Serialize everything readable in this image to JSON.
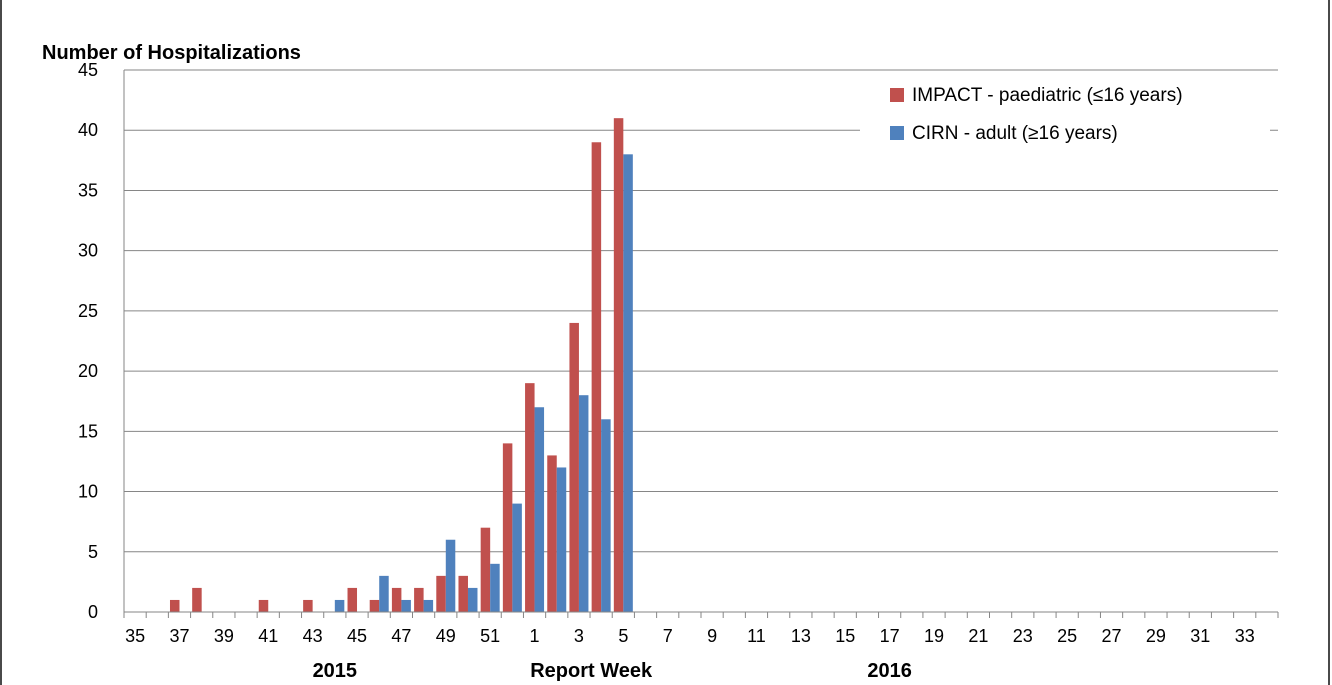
{
  "chart_data": {
    "type": "bar",
    "ylabel": "Number of Hospitalizations",
    "xlabel": "Report Week",
    "ylim": [
      0,
      45
    ],
    "y_ticks": [
      0,
      5,
      10,
      15,
      20,
      25,
      30,
      35,
      40,
      45
    ],
    "grid": "horizontal",
    "legend_placement": "top-right",
    "year_labels": [
      {
        "label": "2015",
        "at_week_index": 9
      },
      {
        "label": "2016",
        "at_week_index": 34
      }
    ],
    "categories": [
      "35",
      "36",
      "37",
      "38",
      "39",
      "40",
      "41",
      "42",
      "43",
      "44",
      "45",
      "46",
      "47",
      "48",
      "49",
      "50",
      "51",
      "52",
      "1",
      "2",
      "3",
      "4",
      "5",
      "6",
      "7",
      "8",
      "9",
      "10",
      "11",
      "12",
      "13",
      "14",
      "15",
      "16",
      "17",
      "18",
      "19",
      "20",
      "21",
      "22",
      "23",
      "24",
      "25",
      "26",
      "27",
      "28",
      "29",
      "30",
      "31",
      "32",
      "33",
      "34"
    ],
    "x_tick_labels": [
      "35",
      "37",
      "39",
      "41",
      "43",
      "45",
      "47",
      "49",
      "51",
      "1",
      "3",
      "5",
      "7",
      "9",
      "11",
      "13",
      "15",
      "17",
      "19",
      "21",
      "23",
      "25",
      "27",
      "29",
      "31",
      "33"
    ],
    "series": [
      {
        "name": "IMPACT - paediatric (≤16 years)",
        "color": "#c0504d",
        "values": [
          0,
          0,
          1,
          2,
          0,
          0,
          1,
          0,
          1,
          0,
          2,
          1,
          2,
          2,
          3,
          3,
          7,
          14,
          19,
          13,
          24,
          39,
          41,
          0,
          0,
          0,
          0,
          0,
          0,
          0,
          0,
          0,
          0,
          0,
          0,
          0,
          0,
          0,
          0,
          0,
          0,
          0,
          0,
          0,
          0,
          0,
          0,
          0,
          0,
          0,
          0,
          0
        ]
      },
      {
        "name": "CIRN - adult (≥16 years)",
        "color": "#4f81bd",
        "values": [
          0,
          0,
          0,
          0,
          0,
          0,
          0,
          0,
          0,
          1,
          0,
          3,
          1,
          1,
          6,
          2,
          4,
          9,
          17,
          12,
          18,
          16,
          38,
          0,
          0,
          0,
          0,
          0,
          0,
          0,
          0,
          0,
          0,
          0,
          0,
          0,
          0,
          0,
          0,
          0,
          0,
          0,
          0,
          0,
          0,
          0,
          0,
          0,
          0,
          0,
          0,
          0
        ]
      }
    ]
  }
}
